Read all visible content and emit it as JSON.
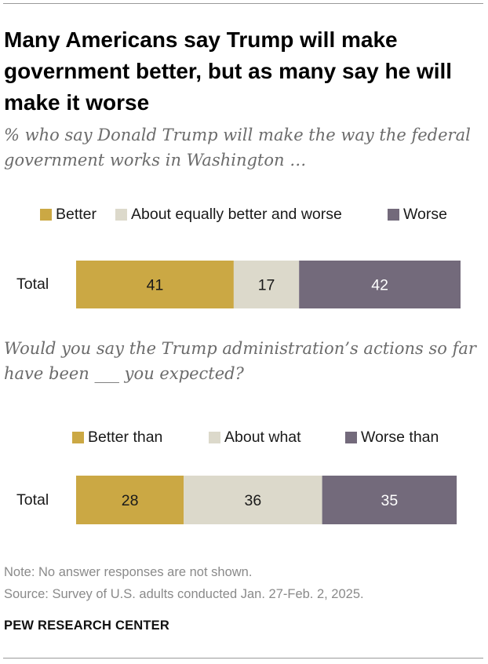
{
  "title": "Many Americans say Trump will make government better, but as many say he will make it worse",
  "question1": "% who say Donald Trump will make the way the federal government works in Washington …",
  "question2": "Would you say the Trump administration’s actions so far have been ___ you expected?",
  "colors": {
    "positive": "#cba844",
    "neutral": "#dcd9cb",
    "negative": "#736a7b",
    "label_dark": "#1a1a1a",
    "label_light": "#ffffff"
  },
  "chart_data": [
    {
      "type": "bar",
      "orientation": "horizontal",
      "stacked": true,
      "categories": [
        "Total"
      ],
      "series": [
        {
          "name": "Better",
          "values": [
            41
          ]
        },
        {
          "name": "About equally better and worse",
          "values": [
            17
          ]
        },
        {
          "name": "Worse",
          "values": [
            42
          ]
        }
      ],
      "xlim": [
        0,
        100
      ],
      "title": "% who say Donald Trump will make the way the federal government works in Washington …",
      "xlabel": "",
      "ylabel": "",
      "legend": "top"
    },
    {
      "type": "bar",
      "orientation": "horizontal",
      "stacked": true,
      "categories": [
        "Total"
      ],
      "series": [
        {
          "name": "Better than",
          "values": [
            28
          ]
        },
        {
          "name": "About what",
          "values": [
            36
          ]
        },
        {
          "name": "Worse than",
          "values": [
            35
          ]
        }
      ],
      "xlim": [
        0,
        100
      ],
      "title": "Would you say the Trump administration’s actions so far have been ___ you expected?",
      "xlabel": "",
      "ylabel": "",
      "legend": "top"
    }
  ],
  "note": "Note: No answer responses are not shown.",
  "source": "Source: Survey of U.S. adults conducted Jan. 27-Feb. 2, 2025.",
  "brand": "PEW RESEARCH CENTER"
}
